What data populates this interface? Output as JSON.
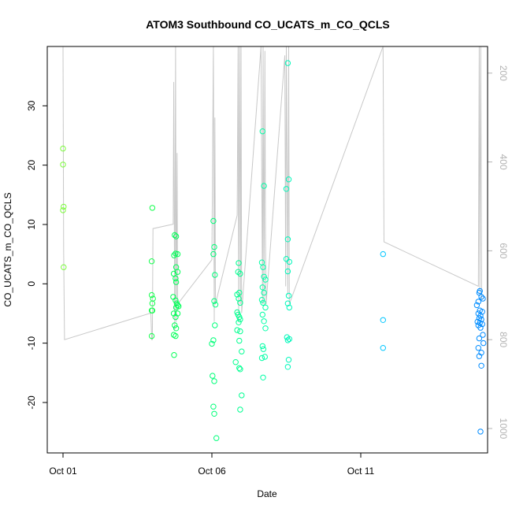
{
  "chart_data": {
    "type": "scatter",
    "title": "ATOM3 Southbound CO_UCATS_m_CO_QCLS",
    "xlabel": "Date",
    "ylabel": "CO_UCATS_m_CO_QCLS",
    "x_ticks": [
      {
        "label": "Oct 01",
        "day": 1
      },
      {
        "label": "Oct 06",
        "day": 6
      },
      {
        "label": "Oct 11",
        "day": 11
      }
    ],
    "xlim": [
      1.0,
      15.32
    ],
    "ylim": [
      -28.5,
      40
    ],
    "y_ticks": [
      -20,
      -10,
      0,
      10,
      20,
      30
    ],
    "y2_label": "",
    "y2_ticks": [
      200,
      400,
      600,
      800,
      1000
    ],
    "y2lim": [
      1055,
      140
    ],
    "grid": false,
    "legend": "none",
    "point_style": "open-circle",
    "color_scale": [
      "#7CFC3C",
      "#00FF50",
      "#00FFB0",
      "#00C8FF",
      "#0088FF"
    ],
    "series": [
      {
        "points": [
          [
            1.0,
            22.8
          ],
          [
            1.0,
            20.1
          ],
          [
            1.02,
            13.0
          ],
          [
            1.0,
            12.4
          ],
          [
            1.02,
            2.8
          ],
          [
            4.0,
            12.8
          ],
          [
            3.98,
            3.8
          ],
          [
            3.98,
            -1.9
          ],
          [
            4.02,
            -2.5
          ],
          [
            4.0,
            -3.3
          ],
          [
            3.98,
            -4.5
          ],
          [
            4.0,
            -4.5
          ],
          [
            3.98,
            -8.8
          ],
          [
            4.75,
            8.2
          ],
          [
            4.8,
            8.0
          ],
          [
            4.78,
            5.1
          ],
          [
            4.85,
            5.0
          ],
          [
            4.73,
            4.8
          ],
          [
            4.8,
            2.8
          ],
          [
            4.72,
            1.7
          ],
          [
            4.85,
            2.0
          ],
          [
            4.78,
            0.9
          ],
          [
            4.8,
            0.3
          ],
          [
            4.7,
            -2.2
          ],
          [
            4.78,
            -2.8
          ],
          [
            4.82,
            -3.3
          ],
          [
            4.85,
            -3.6
          ],
          [
            4.88,
            -3.8
          ],
          [
            4.8,
            -4.0
          ],
          [
            4.72,
            -5.0
          ],
          [
            4.85,
            -5.0
          ],
          [
            4.78,
            -5.6
          ],
          [
            4.75,
            -7.0
          ],
          [
            4.8,
            -7.5
          ],
          [
            4.72,
            -8.6
          ],
          [
            4.78,
            -8.8
          ],
          [
            4.73,
            -12.0
          ],
          [
            6.05,
            10.6
          ],
          [
            6.08,
            6.2
          ],
          [
            6.05,
            5.0
          ],
          [
            6.1,
            1.5
          ],
          [
            6.08,
            -2.9
          ],
          [
            6.12,
            -3.5
          ],
          [
            6.1,
            -7.0
          ],
          [
            6.05,
            -9.5
          ],
          [
            6.0,
            -10.1
          ],
          [
            6.02,
            -15.5
          ],
          [
            6.08,
            -16.4
          ],
          [
            6.05,
            -20.7
          ],
          [
            6.08,
            -21.9
          ],
          [
            6.15,
            -26.0
          ],
          [
            6.9,
            3.5
          ],
          [
            6.88,
            2.0
          ],
          [
            6.95,
            1.7
          ],
          [
            6.92,
            -1.5
          ],
          [
            6.85,
            -1.8
          ],
          [
            6.9,
            -2.5
          ],
          [
            6.95,
            -3.2
          ],
          [
            6.85,
            -4.8
          ],
          [
            6.88,
            -5.2
          ],
          [
            6.92,
            -5.6
          ],
          [
            6.95,
            -6.0
          ],
          [
            6.9,
            -6.5
          ],
          [
            6.85,
            -7.8
          ],
          [
            6.95,
            -8.0
          ],
          [
            6.92,
            -9.6
          ],
          [
            7.0,
            -11.4
          ],
          [
            6.8,
            -13.2
          ],
          [
            6.92,
            -14.2
          ],
          [
            6.95,
            -14.4
          ],
          [
            7.0,
            -18.8
          ],
          [
            6.95,
            -21.2
          ],
          [
            7.7,
            25.7
          ],
          [
            7.75,
            16.5
          ],
          [
            7.68,
            3.6
          ],
          [
            7.72,
            2.8
          ],
          [
            7.75,
            1.2
          ],
          [
            7.8,
            0.7
          ],
          [
            7.7,
            -0.6
          ],
          [
            7.75,
            -1.5
          ],
          [
            7.68,
            -2.7
          ],
          [
            7.72,
            -3.2
          ],
          [
            7.8,
            -4.0
          ],
          [
            7.7,
            -5.2
          ],
          [
            7.75,
            -6.3
          ],
          [
            7.8,
            -7.5
          ],
          [
            7.7,
            -10.5
          ],
          [
            7.73,
            -11.0
          ],
          [
            7.68,
            -12.5
          ],
          [
            7.78,
            -12.3
          ],
          [
            7.72,
            -15.8
          ],
          [
            8.55,
            37.2
          ],
          [
            8.5,
            16.0
          ],
          [
            8.58,
            17.6
          ],
          [
            8.55,
            7.5
          ],
          [
            8.5,
            4.2
          ],
          [
            8.6,
            3.7
          ],
          [
            8.55,
            2.1
          ],
          [
            8.58,
            -2.0
          ],
          [
            8.55,
            -3.3
          ],
          [
            8.6,
            -4.0
          ],
          [
            8.52,
            -9.0
          ],
          [
            8.55,
            -9.5
          ],
          [
            8.6,
            -9.3
          ],
          [
            8.58,
            -12.8
          ],
          [
            8.55,
            -14.0
          ],
          [
            11.75,
            5.0
          ],
          [
            11.75,
            -6.1
          ],
          [
            11.75,
            -10.8
          ],
          [
            15.0,
            -1.2
          ],
          [
            14.98,
            -1.5
          ],
          [
            15.05,
            -2.2
          ],
          [
            15.1,
            -2.5
          ],
          [
            14.95,
            -3.0
          ],
          [
            14.9,
            -3.6
          ],
          [
            15.0,
            -4.5
          ],
          [
            15.08,
            -4.7
          ],
          [
            14.95,
            -5.0
          ],
          [
            15.02,
            -5.4
          ],
          [
            14.98,
            -5.8
          ],
          [
            15.05,
            -6.0
          ],
          [
            14.92,
            -6.4
          ],
          [
            15.0,
            -6.6
          ],
          [
            15.08,
            -6.8
          ],
          [
            14.95,
            -7.0
          ],
          [
            15.02,
            -7.4
          ],
          [
            15.1,
            -8.6
          ],
          [
            14.98,
            -9.2
          ],
          [
            15.12,
            -10.0
          ],
          [
            14.95,
            -10.8
          ],
          [
            15.05,
            -11.6
          ],
          [
            14.98,
            -12.2
          ],
          [
            15.05,
            -13.8
          ],
          [
            15.02,
            -24.9
          ]
        ]
      }
    ],
    "track_series": {
      "axis": "right",
      "color": "#c8c8c8",
      "points": [
        [
          1.0,
          140
        ],
        [
          1.02,
          600
        ],
        [
          1.05,
          800
        ],
        [
          3.95,
          740
        ],
        [
          3.98,
          800
        ],
        [
          4.0,
          800
        ],
        [
          4.02,
          550
        ],
        [
          4.7,
          540
        ],
        [
          4.72,
          220
        ],
        [
          4.75,
          780
        ],
        [
          4.78,
          140
        ],
        [
          4.8,
          760
        ],
        [
          4.83,
          380
        ],
        [
          4.85,
          720
        ],
        [
          6.0,
          620
        ],
        [
          6.05,
          140
        ],
        [
          6.08,
          760
        ],
        [
          6.1,
          300
        ],
        [
          6.12,
          720
        ],
        [
          6.85,
          520
        ],
        [
          6.88,
          140
        ],
        [
          6.9,
          760
        ],
        [
          6.93,
          140
        ],
        [
          6.96,
          720
        ],
        [
          6.98,
          140
        ],
        [
          7.0,
          740
        ],
        [
          7.65,
          140
        ],
        [
          7.7,
          720
        ],
        [
          7.72,
          140
        ],
        [
          7.75,
          720
        ],
        [
          7.78,
          150
        ],
        [
          7.8,
          560
        ],
        [
          7.82,
          720
        ],
        [
          8.45,
          160
        ],
        [
          8.48,
          680
        ],
        [
          8.5,
          140
        ],
        [
          8.55,
          700
        ],
        [
          8.58,
          140
        ],
        [
          8.6,
          720
        ],
        [
          11.75,
          140
        ],
        [
          11.78,
          580
        ],
        [
          14.95,
          680
        ],
        [
          14.98,
          140
        ],
        [
          15.0,
          700
        ],
        [
          15.03,
          140
        ],
        [
          15.06,
          710
        ]
      ]
    }
  }
}
